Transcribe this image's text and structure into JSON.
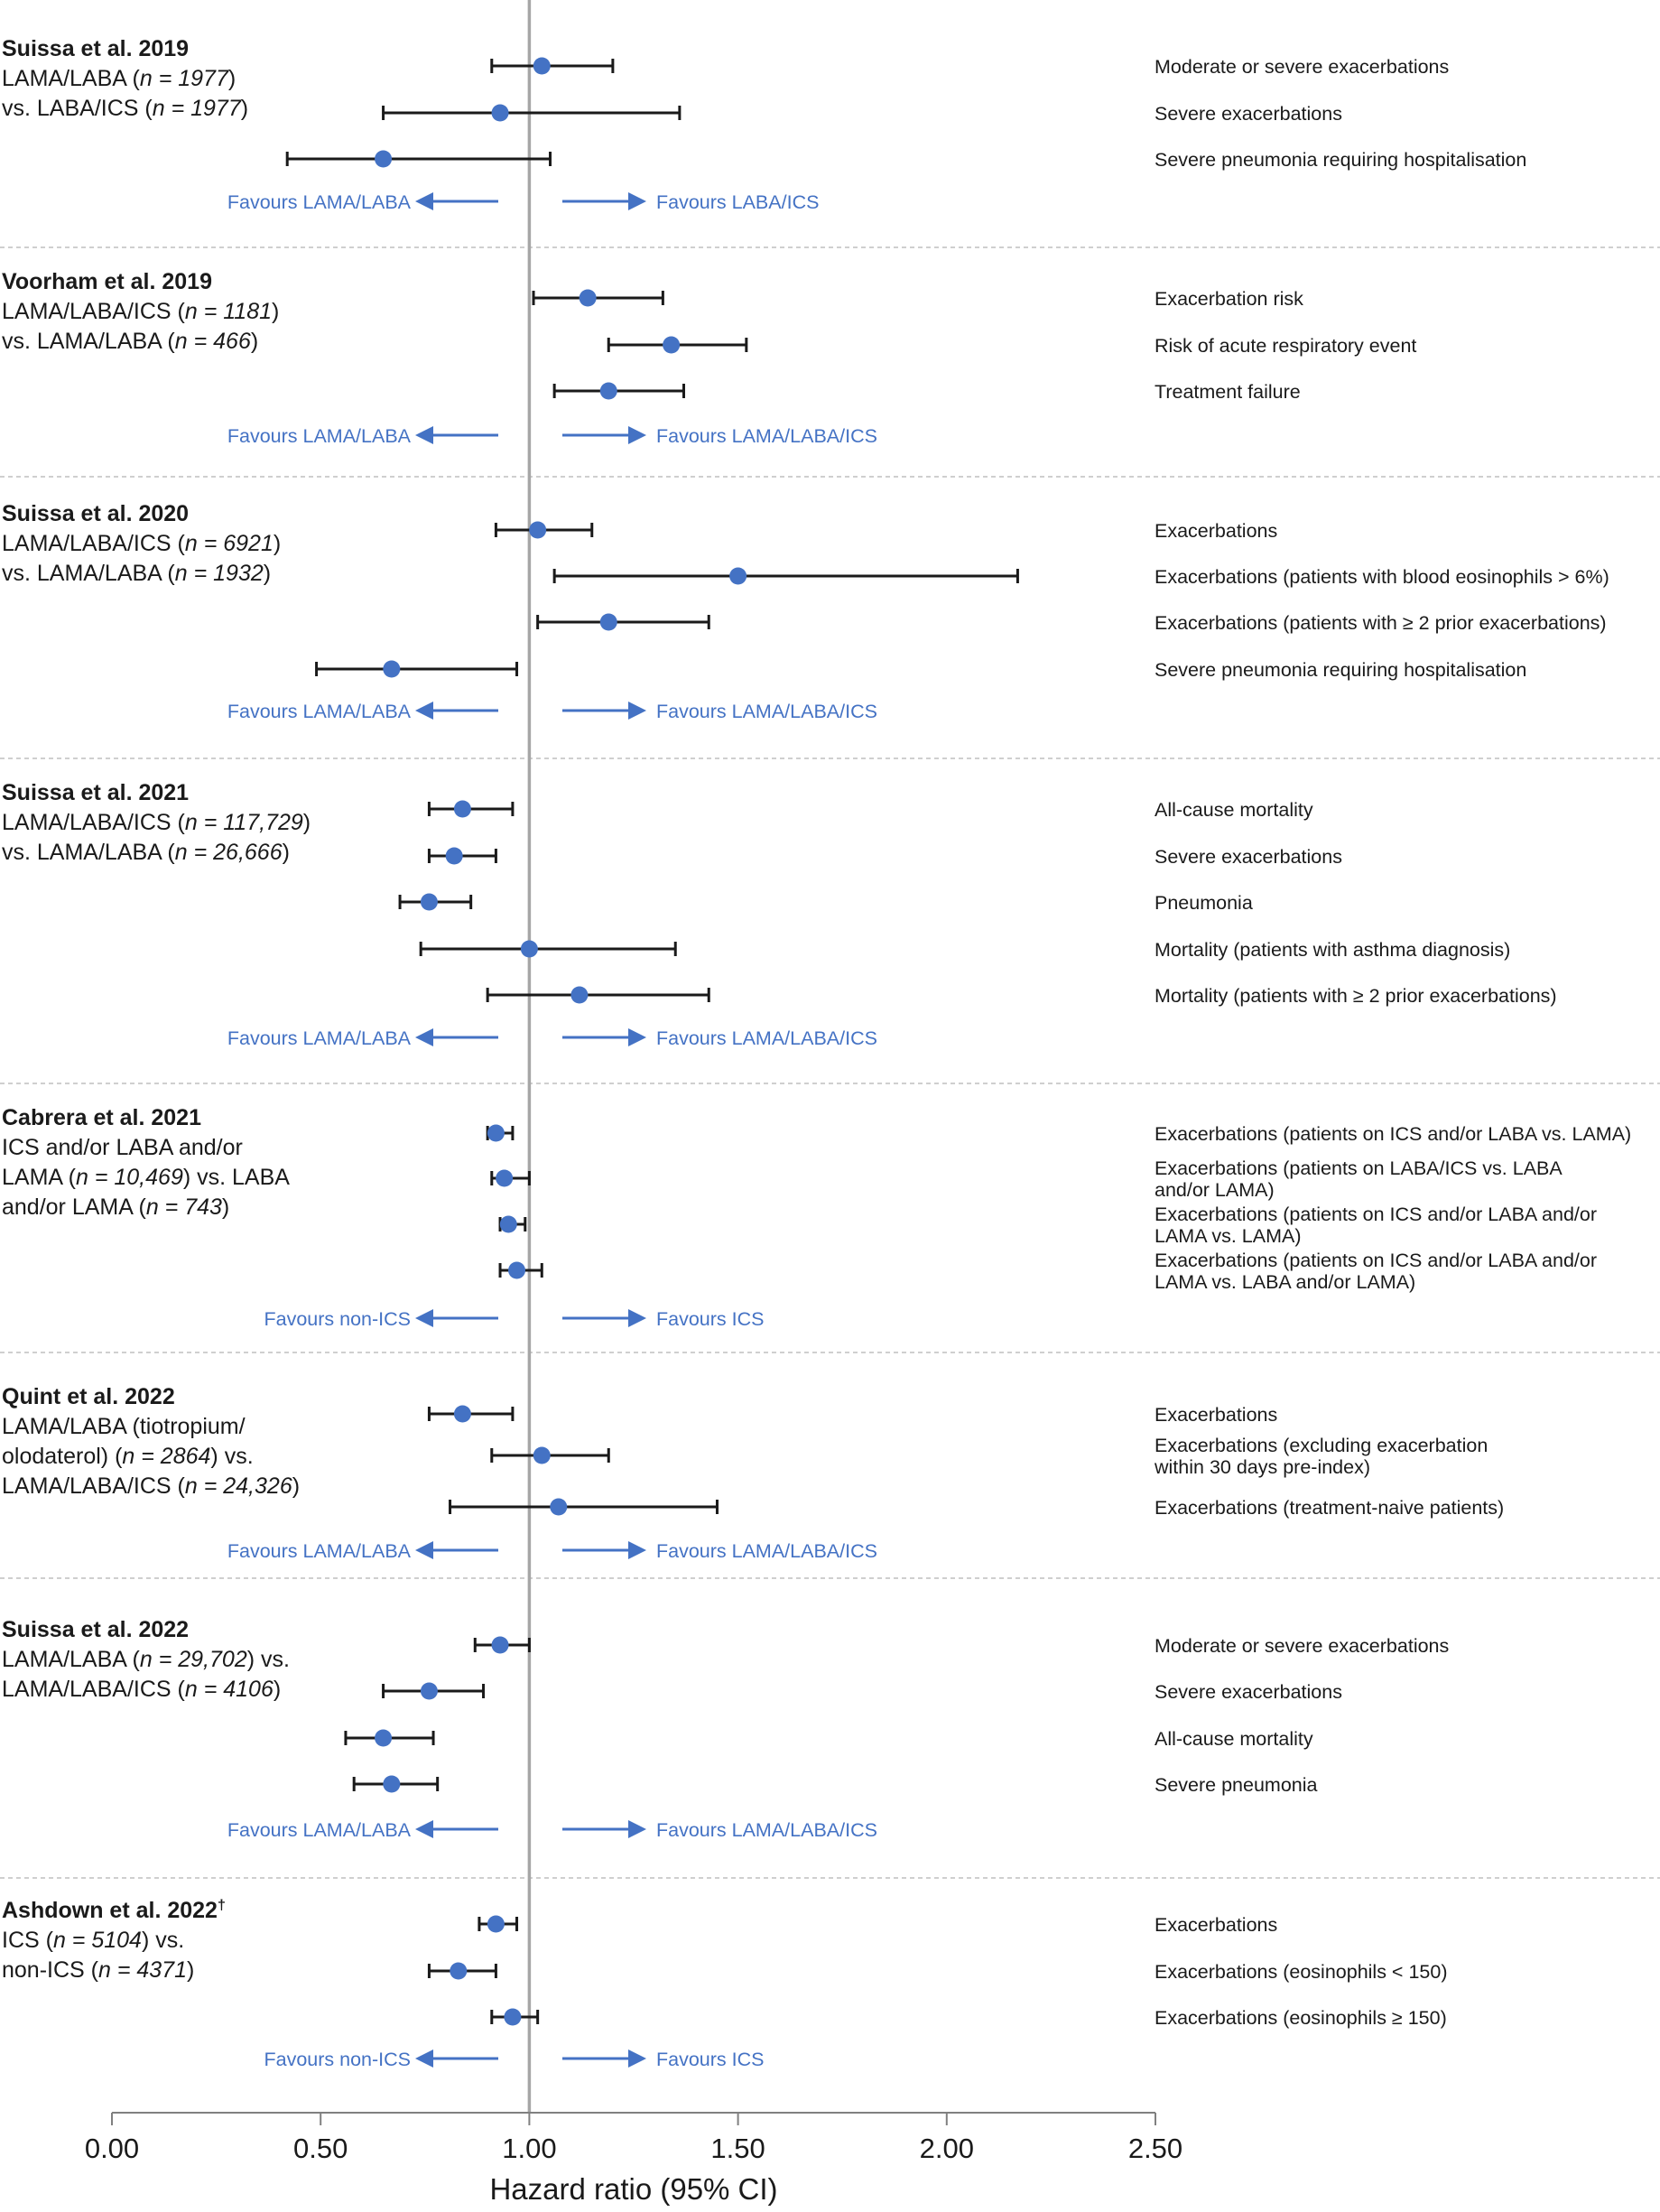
{
  "chart_data": {
    "type": "scatter",
    "subtype": "forest-plot",
    "xlabel": "Hazard ratio (95% CI)",
    "xlim": [
      0,
      2.5
    ],
    "xticks": [
      "0.00",
      "0.50",
      "1.00",
      "1.50",
      "2.00",
      "2.50"
    ],
    "reference_line": 1.0,
    "grid": false,
    "colors": {
      "point": "#4472c4",
      "whisker": "#1a1a1a",
      "favours": "#4472c4",
      "reference": "#a6a6a6",
      "separator": "#bfbfbf"
    },
    "studies": [
      {
        "title": "Suissa et al. 2019",
        "desc": [
          [
            {
              "t": "LAMA/LABA ("
            },
            {
              "t": "n = 1977",
              "i": true
            },
            {
              "t": ")"
            }
          ],
          [
            {
              "t": "vs. LABA/ICS ("
            },
            {
              "t": "n = 1977",
              "i": true
            },
            {
              "t": ")"
            }
          ]
        ],
        "favours_left": "Favours LAMA/LABA",
        "favours_right": "Favours LABA/ICS",
        "outcomes": [
          {
            "label": [
              "Moderate or severe exacerbations"
            ],
            "hr": 1.03,
            "lo": 0.91,
            "hi": 1.2
          },
          {
            "label": [
              "Severe exacerbations"
            ],
            "hr": 0.93,
            "lo": 0.65,
            "hi": 1.36
          },
          {
            "label": [
              "Severe pneumonia requiring hospitalisation"
            ],
            "hr": 0.65,
            "lo": 0.42,
            "hi": 1.05
          }
        ]
      },
      {
        "title": "Voorham et al. 2019",
        "desc": [
          [
            {
              "t": "LAMA/LABA/ICS ("
            },
            {
              "t": "n = 1181",
              "i": true
            },
            {
              "t": ")"
            }
          ],
          [
            {
              "t": "vs. LAMA/LABA ("
            },
            {
              "t": "n = 466",
              "i": true
            },
            {
              "t": ")"
            }
          ]
        ],
        "favours_left": "Favours LAMA/LABA",
        "favours_right": "Favours LAMA/LABA/ICS",
        "outcomes": [
          {
            "label": [
              "Exacerbation risk"
            ],
            "hr": 1.14,
            "lo": 1.01,
            "hi": 1.32
          },
          {
            "label": [
              "Risk of acute respiratory event"
            ],
            "hr": 1.34,
            "lo": 1.19,
            "hi": 1.52
          },
          {
            "label": [
              "Treatment failure"
            ],
            "hr": 1.19,
            "lo": 1.06,
            "hi": 1.37
          }
        ]
      },
      {
        "title": "Suissa et al. 2020",
        "desc": [
          [
            {
              "t": "LAMA/LABA/ICS ("
            },
            {
              "t": "n = 6921",
              "i": true
            },
            {
              "t": ")"
            }
          ],
          [
            {
              "t": "vs. LAMA/LABA ("
            },
            {
              "t": "n = 1932",
              "i": true
            },
            {
              "t": ")"
            }
          ]
        ],
        "favours_left": "Favours LAMA/LABA",
        "favours_right": "Favours LAMA/LABA/ICS",
        "outcomes": [
          {
            "label": [
              "Exacerbations"
            ],
            "hr": 1.02,
            "lo": 0.92,
            "hi": 1.15
          },
          {
            "label": [
              "Exacerbations (patients with blood eosinophils > 6%)"
            ],
            "hr": 1.5,
            "lo": 1.06,
            "hi": 2.17
          },
          {
            "label": [
              "Exacerbations (patients with ≥ 2 prior exacerbations)"
            ],
            "hr": 1.19,
            "lo": 1.02,
            "hi": 1.43
          },
          {
            "label": [
              "Severe pneumonia requiring hospitalisation"
            ],
            "hr": 0.67,
            "lo": 0.49,
            "hi": 0.97
          }
        ]
      },
      {
        "title": "Suissa et al. 2021",
        "desc": [
          [
            {
              "t": "LAMA/LABA/ICS ("
            },
            {
              "t": "n = 117,729",
              "i": true
            },
            {
              "t": ")"
            }
          ],
          [
            {
              "t": "vs. LAMA/LABA ("
            },
            {
              "t": "n = 26,666",
              "i": true
            },
            {
              "t": ")"
            }
          ]
        ],
        "favours_left": "Favours LAMA/LABA",
        "favours_right": "Favours LAMA/LABA/ICS",
        "outcomes": [
          {
            "label": [
              "All-cause mortality"
            ],
            "hr": 0.84,
            "lo": 0.76,
            "hi": 0.96
          },
          {
            "label": [
              "Severe exacerbations"
            ],
            "hr": 0.82,
            "lo": 0.76,
            "hi": 0.92
          },
          {
            "label": [
              "Pneumonia"
            ],
            "hr": 0.76,
            "lo": 0.69,
            "hi": 0.86
          },
          {
            "label": [
              "Mortality (patients with asthma diagnosis)"
            ],
            "hr": 1.0,
            "lo": 0.74,
            "hi": 1.35
          },
          {
            "label": [
              "Mortality (patients with ≥ 2 prior exacerbations)"
            ],
            "hr": 1.12,
            "lo": 0.9,
            "hi": 1.43
          }
        ]
      },
      {
        "title": "Cabrera et al. 2021",
        "desc": [
          [
            {
              "t": "ICS and/or LABA and/or"
            }
          ],
          [
            {
              "t": "LAMA ("
            },
            {
              "t": "n = 10,469",
              "i": true
            },
            {
              "t": ") vs. LABA"
            }
          ],
          [
            {
              "t": "and/or LAMA ("
            },
            {
              "t": "n = 743",
              "i": true
            },
            {
              "t": ")"
            }
          ]
        ],
        "favours_left": "Favours non-ICS",
        "favours_right": "Favours ICS",
        "outcomes": [
          {
            "label": [
              "Exacerbations (patients on ICS and/or LABA vs. LAMA)"
            ],
            "hr": 0.92,
            "lo": 0.9,
            "hi": 0.96
          },
          {
            "label": [
              "Exacerbations (patients on LABA/ICS vs. LABA",
              "and/or LAMA)"
            ],
            "hr": 0.94,
            "lo": 0.91,
            "hi": 1.0
          },
          {
            "label": [
              "Exacerbations (patients on ICS and/or LABA and/or",
              "LAMA vs. LAMA)"
            ],
            "hr": 0.95,
            "lo": 0.93,
            "hi": 0.99
          },
          {
            "label": [
              "Exacerbations (patients on ICS and/or LABA and/or",
              "LAMA vs. LABA and/or LAMA)"
            ],
            "hr": 0.97,
            "lo": 0.93,
            "hi": 1.03
          }
        ]
      },
      {
        "title": "Quint et al. 2022",
        "desc": [
          [
            {
              "t": "LAMA/LABA (tiotropium/"
            }
          ],
          [
            {
              "t": "olodaterol) ("
            },
            {
              "t": "n = 2864",
              "i": true
            },
            {
              "t": ") vs."
            }
          ],
          [
            {
              "t": "LAMA/LABA/ICS ("
            },
            {
              "t": "n = 24,326",
              "i": true
            },
            {
              "t": ")"
            }
          ]
        ],
        "favours_left": "Favours LAMA/LABA",
        "favours_right": "Favours LAMA/LABA/ICS",
        "outcomes": [
          {
            "label": [
              "Exacerbations"
            ],
            "hr": 0.84,
            "lo": 0.76,
            "hi": 0.96
          },
          {
            "label": [
              "Exacerbations (excluding exacerbation",
              "within 30 days pre-index)"
            ],
            "hr": 1.03,
            "lo": 0.91,
            "hi": 1.19
          },
          {
            "label": [
              "Exacerbations (treatment-naive patients)"
            ],
            "hr": 1.07,
            "lo": 0.81,
            "hi": 1.45
          }
        ]
      },
      {
        "title": "Suissa et al. 2022",
        "desc": [
          [
            {
              "t": "LAMA/LABA ("
            },
            {
              "t": "n = 29,702",
              "i": true
            },
            {
              "t": ") vs."
            }
          ],
          [
            {
              "t": "LAMA/LABA/ICS ("
            },
            {
              "t": "n = 4106",
              "i": true
            },
            {
              "t": ")"
            }
          ]
        ],
        "favours_left": "Favours LAMA/LABA",
        "favours_right": "Favours LAMA/LABA/ICS",
        "outcomes": [
          {
            "label": [
              "Moderate or severe exacerbations"
            ],
            "hr": 0.93,
            "lo": 0.87,
            "hi": 1.0
          },
          {
            "label": [
              "Severe exacerbations"
            ],
            "hr": 0.76,
            "lo": 0.65,
            "hi": 0.89
          },
          {
            "label": [
              "All-cause mortality"
            ],
            "hr": 0.65,
            "lo": 0.56,
            "hi": 0.77
          },
          {
            "label": [
              "Severe pneumonia"
            ],
            "hr": 0.67,
            "lo": 0.58,
            "hi": 0.78
          }
        ]
      },
      {
        "title": "Ashdown et al. 2022",
        "title_sup": "†",
        "desc": [
          [
            {
              "t": "ICS ("
            },
            {
              "t": "n = 5104",
              "i": true
            },
            {
              "t": ") vs."
            }
          ],
          [
            {
              "t": "non-ICS ("
            },
            {
              "t": "n = 4371",
              "i": true
            },
            {
              "t": ")"
            }
          ]
        ],
        "favours_left": "Favours non-ICS",
        "favours_right": "Favours ICS",
        "outcomes": [
          {
            "label": [
              "Exacerbations"
            ],
            "hr": 0.92,
            "lo": 0.88,
            "hi": 0.97
          },
          {
            "label": [
              "Exacerbations (eosinophils < 150)"
            ],
            "hr": 0.83,
            "lo": 0.76,
            "hi": 0.92
          },
          {
            "label": [
              "Exacerbations (eosinophils ≥ 150)"
            ],
            "hr": 0.96,
            "lo": 0.91,
            "hi": 1.02
          }
        ]
      }
    ]
  }
}
